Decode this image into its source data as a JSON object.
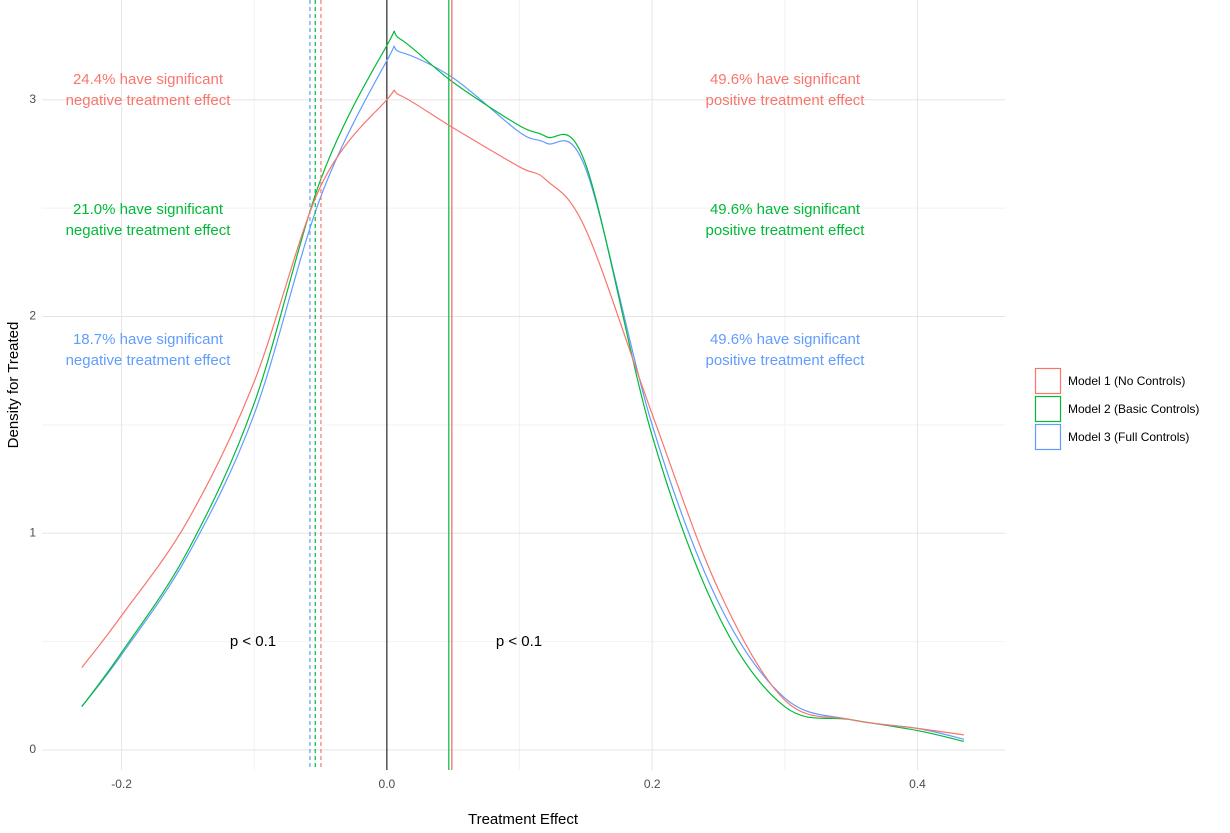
{
  "chart_data": {
    "type": "density",
    "x_label": "Treatment Effect",
    "y_label": "Density for Treated",
    "xlim": [
      -0.26,
      0.466
    ],
    "ylim": [
      -0.092,
      3.46
    ],
    "xticks": [
      -0.2,
      {
        "value": 0,
        "label": "0.0"
      },
      0.2,
      0.4
    ],
    "yticks": [
      0,
      1,
      2,
      3
    ],
    "xminorticks": [
      -0.1,
      0.1,
      0.3
    ],
    "yminorticks": [
      0.5,
      1.5,
      2.5
    ],
    "grid": true,
    "legend": "right",
    "zero_line": 0,
    "p_labels": [
      "p < 0.1",
      "p < 0.1"
    ],
    "x": [
      -0.23,
      -0.2,
      -0.15,
      -0.1,
      -0.05,
      0,
      0.01,
      0.05,
      0.1,
      0.12,
      0.15,
      0.2,
      0.25,
      0.3,
      0.35,
      0.4,
      0.435
    ],
    "series": [
      {
        "name": "Model 1 (No Controls)",
        "color": "#F8766D",
        "values": [
          0.38,
          0.62,
          1.06,
          1.7,
          2.6,
          3.0,
          3.02,
          2.87,
          2.69,
          2.63,
          2.4,
          1.55,
          0.74,
          0.23,
          0.14,
          0.1,
          0.07
        ],
        "lower_threshold": -0.0497,
        "upper_threshold": 0.049,
        "annotation_left": [
          "24.4% have significant",
          "negative treatment effect"
        ],
        "annotation_right": [
          "49.6% have significant",
          "positive treatment effect"
        ]
      },
      {
        "name": "Model 2 (Basic Controls)",
        "color": "#00BA38",
        "values": [
          0.2,
          0.45,
          0.92,
          1.6,
          2.63,
          3.25,
          3.28,
          3.08,
          2.88,
          2.83,
          2.7,
          1.45,
          0.62,
          0.2,
          0.14,
          0.09,
          0.04
        ],
        "lower_threshold": -0.054,
        "upper_threshold": 0.0467,
        "annotation_left": [
          "21.0% have significant",
          "negative treatment effect"
        ],
        "annotation_right": [
          "49.6% have significant",
          "positive treatment effect"
        ]
      },
      {
        "name": "Model 3 (Full Controls)",
        "color": "#619CFF",
        "values": [
          0.2,
          0.44,
          0.9,
          1.55,
          2.55,
          3.18,
          3.22,
          3.1,
          2.85,
          2.8,
          2.68,
          1.5,
          0.68,
          0.24,
          0.14,
          0.1,
          0.05
        ],
        "lower_threshold": -0.058,
        "upper_threshold": 0.049,
        "annotation_left": [
          "18.7% have significant",
          "negative treatment effect"
        ],
        "annotation_right": [
          "49.6% have significant",
          "positive treatment effect"
        ]
      }
    ]
  }
}
